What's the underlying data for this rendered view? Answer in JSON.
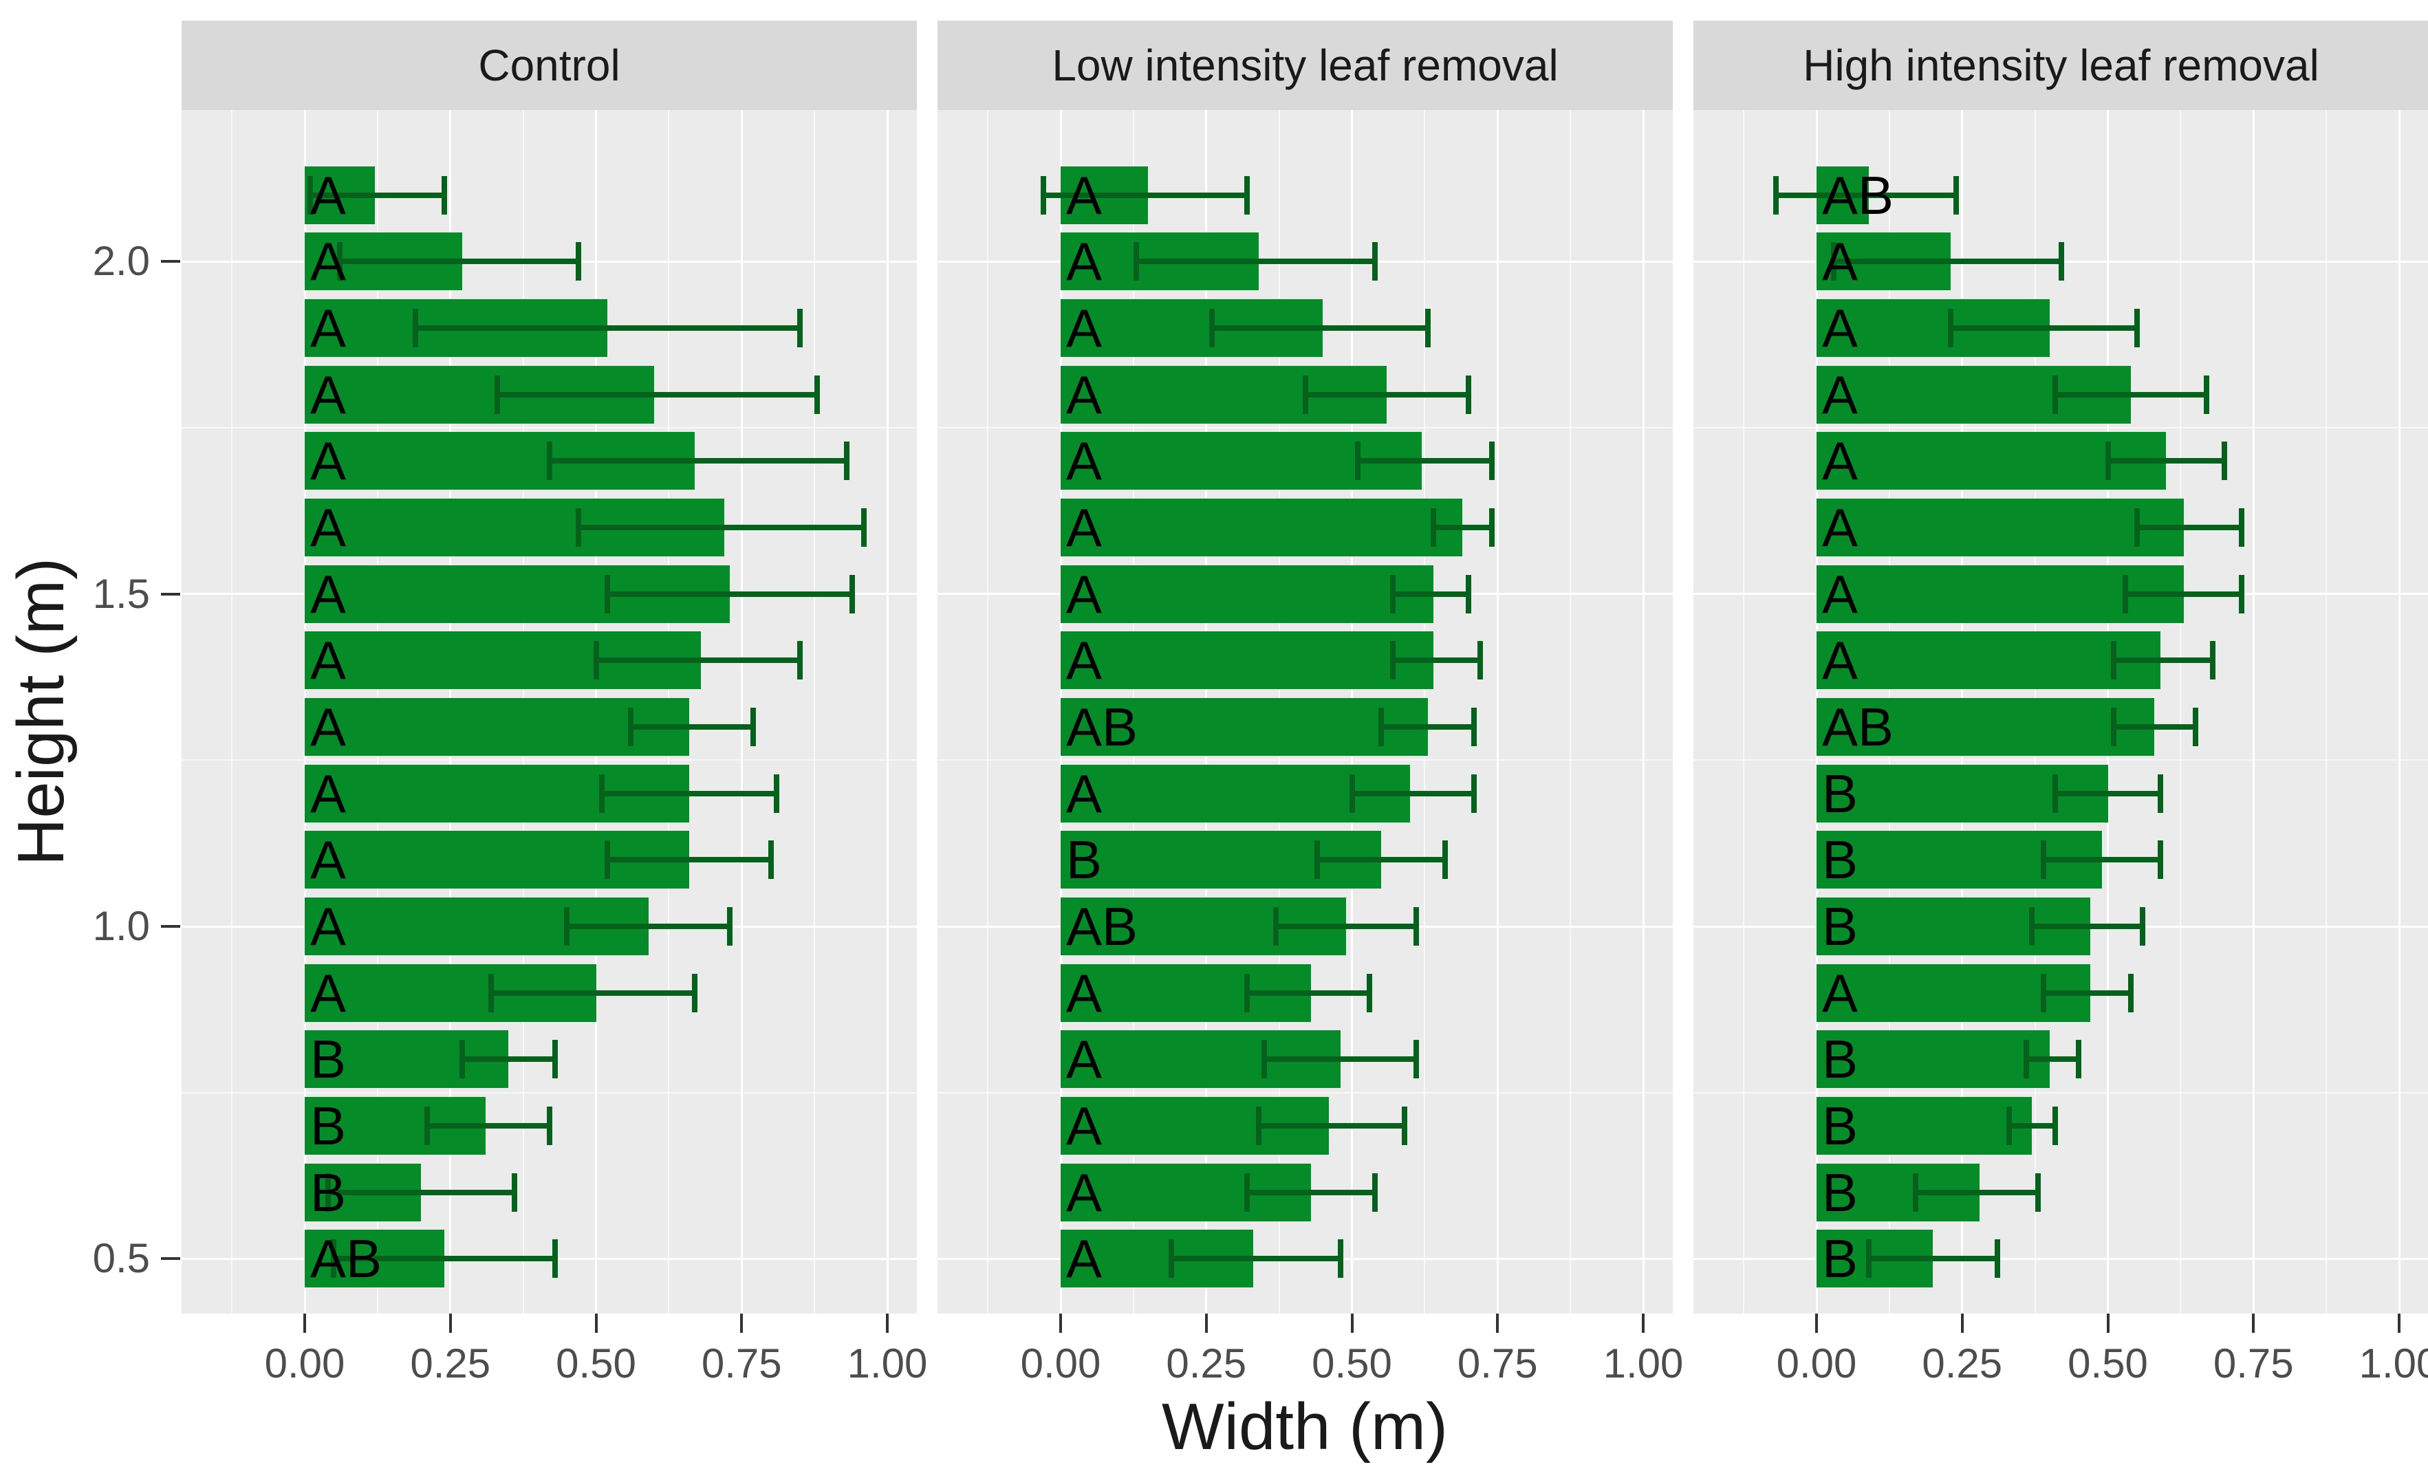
{
  "chart_data": {
    "type": "bar",
    "orientation": "horizontal",
    "title": "",
    "xlabel": "Width (m)",
    "ylabel": "Height (m)",
    "x_tick_labels": [
      "0.00",
      "0.25",
      "0.50",
      "0.75",
      "1.00"
    ],
    "x_tick_values": [
      0,
      0.25,
      0.5,
      0.75,
      1.0
    ],
    "x_minor_gridlines": [
      -0.125,
      0.125,
      0.375,
      0.625,
      0.875
    ],
    "y_tick_labels": [
      "2.0",
      "1.5",
      "1.0",
      "0.5"
    ],
    "y_tick_values": [
      2.0,
      1.5,
      1.0,
      0.5
    ],
    "y_minor_gridlines": [
      0.75,
      1.25,
      1.75
    ],
    "xlim": [
      -0.211,
      1.051
    ],
    "ylim": [
      0.416,
      2.228
    ],
    "grid": true,
    "legend_position": "none",
    "colors": {
      "bar_fill": "#058C28",
      "error_bar": "#06611C",
      "panel_background": "#EBEBEB",
      "strip_background": "#D9D9D9",
      "gridline": "#FFFFFF",
      "axis_text": "#4d4d4d",
      "axis_title": "#1a1a1a",
      "tick_mark": "#333333"
    },
    "facets": [
      {
        "title": "Control",
        "bars": [
          {
            "height": 2.1,
            "sig": "A",
            "width": 0.12,
            "err_low": 0.01,
            "err_high": 0.24
          },
          {
            "height": 2.0,
            "sig": "A",
            "width": 0.27,
            "err_low": 0.06,
            "err_high": 0.47
          },
          {
            "height": 1.9,
            "sig": "A",
            "width": 0.52,
            "err_low": 0.19,
            "err_high": 0.85
          },
          {
            "height": 1.8,
            "sig": "A",
            "width": 0.6,
            "err_low": 0.33,
            "err_high": 0.88
          },
          {
            "height": 1.7,
            "sig": "A",
            "width": 0.67,
            "err_low": 0.42,
            "err_high": 0.93
          },
          {
            "height": 1.6,
            "sig": "A",
            "width": 0.72,
            "err_low": 0.47,
            "err_high": 0.96
          },
          {
            "height": 1.5,
            "sig": "A",
            "width": 0.73,
            "err_low": 0.52,
            "err_high": 0.94
          },
          {
            "height": 1.4,
            "sig": "A",
            "width": 0.68,
            "err_low": 0.5,
            "err_high": 0.85
          },
          {
            "height": 1.3,
            "sig": "A",
            "width": 0.66,
            "err_low": 0.56,
            "err_high": 0.77
          },
          {
            "height": 1.2,
            "sig": "A",
            "width": 0.66,
            "err_low": 0.51,
            "err_high": 0.81
          },
          {
            "height": 1.1,
            "sig": "A",
            "width": 0.66,
            "err_low": 0.52,
            "err_high": 0.8
          },
          {
            "height": 1.0,
            "sig": "A",
            "width": 0.59,
            "err_low": 0.45,
            "err_high": 0.73
          },
          {
            "height": 0.9,
            "sig": "A",
            "width": 0.5,
            "err_low": 0.32,
            "err_high": 0.67
          },
          {
            "height": 0.8,
            "sig": "B",
            "width": 0.35,
            "err_low": 0.27,
            "err_high": 0.43
          },
          {
            "height": 0.7,
            "sig": "B",
            "width": 0.31,
            "err_low": 0.21,
            "err_high": 0.42
          },
          {
            "height": 0.6,
            "sig": "B",
            "width": 0.2,
            "err_low": 0.04,
            "err_high": 0.36
          },
          {
            "height": 0.5,
            "sig": "AB",
            "width": 0.24,
            "err_low": 0.05,
            "err_high": 0.43
          }
        ]
      },
      {
        "title": "Low intensity leaf removal",
        "bars": [
          {
            "height": 2.1,
            "sig": "A",
            "width": 0.15,
            "err_low": -0.03,
            "err_high": 0.32
          },
          {
            "height": 2.0,
            "sig": "A",
            "width": 0.34,
            "err_low": 0.13,
            "err_high": 0.54
          },
          {
            "height": 1.9,
            "sig": "A",
            "width": 0.45,
            "err_low": 0.26,
            "err_high": 0.63
          },
          {
            "height": 1.8,
            "sig": "A",
            "width": 0.56,
            "err_low": 0.42,
            "err_high": 0.7
          },
          {
            "height": 1.7,
            "sig": "A",
            "width": 0.62,
            "err_low": 0.51,
            "err_high": 0.74
          },
          {
            "height": 1.6,
            "sig": "A",
            "width": 0.69,
            "err_low": 0.64,
            "err_high": 0.74
          },
          {
            "height": 1.5,
            "sig": "A",
            "width": 0.64,
            "err_low": 0.57,
            "err_high": 0.7
          },
          {
            "height": 1.4,
            "sig": "A",
            "width": 0.64,
            "err_low": 0.57,
            "err_high": 0.72
          },
          {
            "height": 1.3,
            "sig": "AB",
            "width": 0.63,
            "err_low": 0.55,
            "err_high": 0.71
          },
          {
            "height": 1.2,
            "sig": "A",
            "width": 0.6,
            "err_low": 0.5,
            "err_high": 0.71
          },
          {
            "height": 1.1,
            "sig": "B",
            "width": 0.55,
            "err_low": 0.44,
            "err_high": 0.66
          },
          {
            "height": 1.0,
            "sig": "AB",
            "width": 0.49,
            "err_low": 0.37,
            "err_high": 0.61
          },
          {
            "height": 0.9,
            "sig": "A",
            "width": 0.43,
            "err_low": 0.32,
            "err_high": 0.53
          },
          {
            "height": 0.8,
            "sig": "A",
            "width": 0.48,
            "err_low": 0.35,
            "err_high": 0.61
          },
          {
            "height": 0.7,
            "sig": "A",
            "width": 0.46,
            "err_low": 0.34,
            "err_high": 0.59
          },
          {
            "height": 0.6,
            "sig": "A",
            "width": 0.43,
            "err_low": 0.32,
            "err_high": 0.54
          },
          {
            "height": 0.5,
            "sig": "A",
            "width": 0.33,
            "err_low": 0.19,
            "err_high": 0.48
          }
        ]
      },
      {
        "title": "High intensity leaf removal",
        "bars": [
          {
            "height": 2.1,
            "sig": "AB",
            "width": 0.09,
            "err_low": -0.07,
            "err_high": 0.24
          },
          {
            "height": 2.0,
            "sig": "A",
            "width": 0.23,
            "err_low": 0.03,
            "err_high": 0.42
          },
          {
            "height": 1.9,
            "sig": "A",
            "width": 0.4,
            "err_low": 0.23,
            "err_high": 0.55
          },
          {
            "height": 1.8,
            "sig": "A",
            "width": 0.54,
            "err_low": 0.41,
            "err_high": 0.67
          },
          {
            "height": 1.7,
            "sig": "A",
            "width": 0.6,
            "err_low": 0.5,
            "err_high": 0.7
          },
          {
            "height": 1.6,
            "sig": "A",
            "width": 0.63,
            "err_low": 0.55,
            "err_high": 0.73
          },
          {
            "height": 1.5,
            "sig": "A",
            "width": 0.63,
            "err_low": 0.53,
            "err_high": 0.73
          },
          {
            "height": 1.4,
            "sig": "A",
            "width": 0.59,
            "err_low": 0.51,
            "err_high": 0.68
          },
          {
            "height": 1.3,
            "sig": "AB",
            "width": 0.58,
            "err_low": 0.51,
            "err_high": 0.65
          },
          {
            "height": 1.2,
            "sig": "B",
            "width": 0.5,
            "err_low": 0.41,
            "err_high": 0.59
          },
          {
            "height": 1.1,
            "sig": "B",
            "width": 0.49,
            "err_low": 0.39,
            "err_high": 0.59
          },
          {
            "height": 1.0,
            "sig": "B",
            "width": 0.47,
            "err_low": 0.37,
            "err_high": 0.56
          },
          {
            "height": 0.9,
            "sig": "A",
            "width": 0.47,
            "err_low": 0.39,
            "err_high": 0.54
          },
          {
            "height": 0.8,
            "sig": "B",
            "width": 0.4,
            "err_low": 0.36,
            "err_high": 0.45
          },
          {
            "height": 0.7,
            "sig": "B",
            "width": 0.37,
            "err_low": 0.33,
            "err_high": 0.41
          },
          {
            "height": 0.6,
            "sig": "B",
            "width": 0.28,
            "err_low": 0.17,
            "err_high": 0.38
          },
          {
            "height": 0.5,
            "sig": "B",
            "width": 0.2,
            "err_low": 0.09,
            "err_high": 0.31
          }
        ]
      }
    ]
  }
}
